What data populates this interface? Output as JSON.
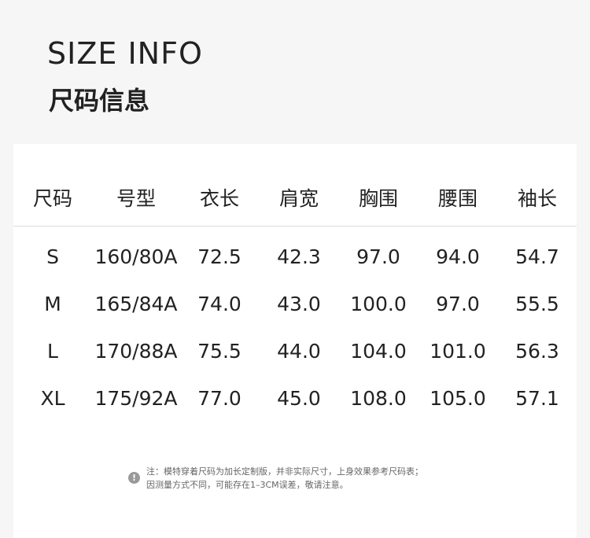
{
  "title_en": "SIZE INFO",
  "title_cn": "尺码信息",
  "table": {
    "headers": [
      "尺码",
      "号型",
      "衣长",
      "肩宽",
      "胸围",
      "腰围",
      "袖长"
    ],
    "rows": [
      [
        "S",
        "160/80A",
        "72.5",
        "42.3",
        "97.0",
        "94.0",
        "54.7"
      ],
      [
        "M",
        "165/84A",
        "74.0",
        "43.0",
        "100.0",
        "97.0",
        "55.5"
      ],
      [
        "L",
        "170/88A",
        "75.5",
        "44.0",
        "104.0",
        "101.0",
        "56.3"
      ],
      [
        "XL",
        "175/92A",
        "77.0",
        "45.0",
        "108.0",
        "105.0",
        "57.1"
      ]
    ]
  },
  "note": {
    "icon": "exclamation-icon",
    "line1": "注：模特穿着尺码为加长定制版，并非实际尺寸，上身效果参考尺码表；",
    "line2": "因测量方式不同，可能存在1–3CM误差，敬请注意。"
  }
}
